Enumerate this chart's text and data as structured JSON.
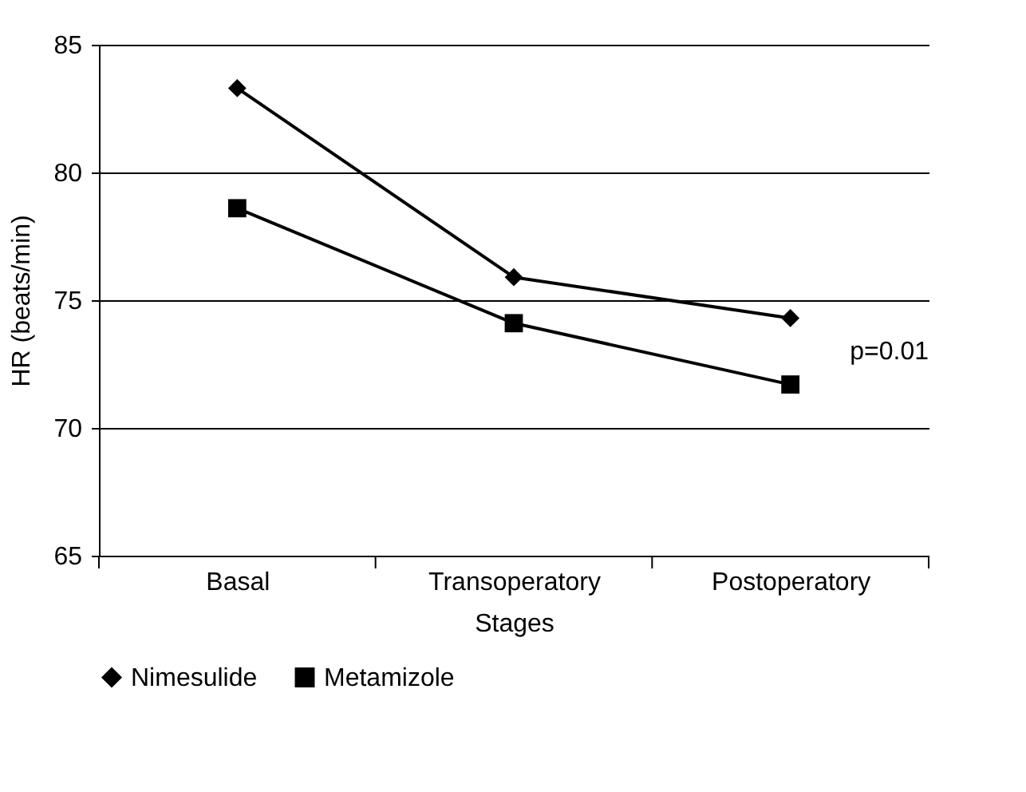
{
  "chart_data": {
    "type": "line",
    "categories": [
      "Basal",
      "Transoperatory",
      "Postoperatory"
    ],
    "series": [
      {
        "name": "Nimesulide",
        "color": "#000000",
        "marker": "diamond",
        "values": [
          83.3,
          75.9,
          74.3
        ]
      },
      {
        "name": "Metamizole",
        "color": "#000000",
        "marker": "square",
        "values": [
          78.6,
          74.1,
          71.7
        ]
      }
    ],
    "xlabel": "Stages",
    "ylabel": "HR (beats/min)",
    "ylim": [
      65,
      85
    ],
    "yticks": [
      65,
      70,
      75,
      80,
      85
    ],
    "grid": "y",
    "legend": "bottom",
    "line_style": "solid",
    "annotations": [
      "p=0.01"
    ]
  }
}
